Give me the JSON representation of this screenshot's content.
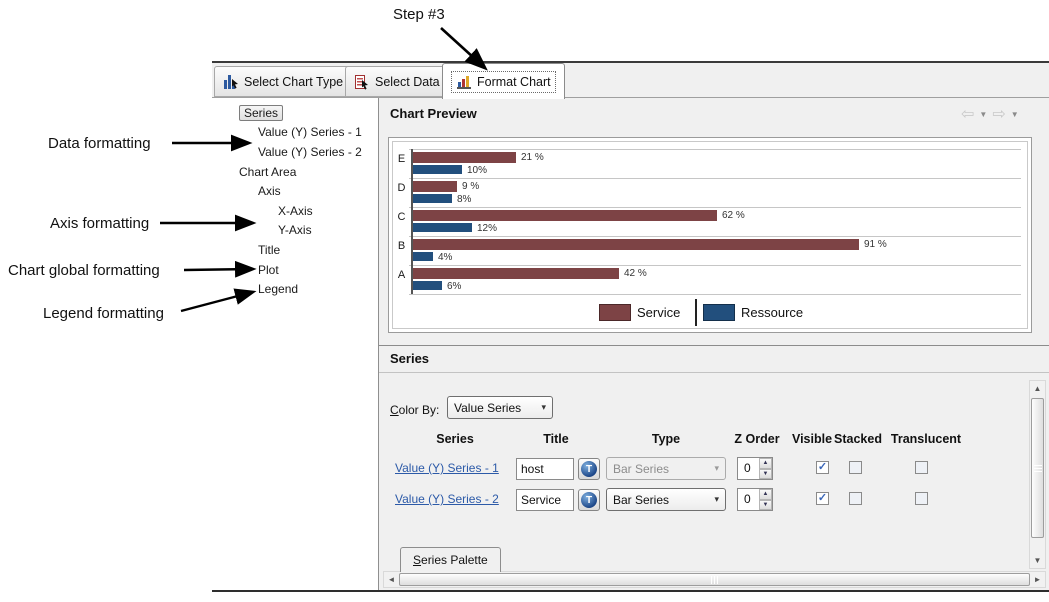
{
  "annotations": {
    "step": {
      "label": "Step #3"
    },
    "callouts": [
      {
        "label": "Data formatting"
      },
      {
        "label": "Axis formatting"
      },
      {
        "label": "Chart global formatting"
      },
      {
        "label": "Legend formatting"
      }
    ]
  },
  "tabs": [
    {
      "label": "Select Chart Type",
      "selected": false
    },
    {
      "label": "Select Data",
      "selected": false
    },
    {
      "label": "Format Chart",
      "selected": true
    }
  ],
  "tree": {
    "items": [
      {
        "label": "Series",
        "level": 1,
        "selected": true
      },
      {
        "label": "Value (Y) Series - 1",
        "level": 2,
        "selected": false
      },
      {
        "label": "Value (Y) Series - 2",
        "level": 2,
        "selected": false
      },
      {
        "label": "Chart Area",
        "level": 1,
        "selected": false
      },
      {
        "label": "Axis",
        "level": 2,
        "selected": false
      },
      {
        "label": "X-Axis",
        "level": 3,
        "selected": false
      },
      {
        "label": "Y-Axis",
        "level": 3,
        "selected": false
      },
      {
        "label": "Title",
        "level": 2,
        "selected": false
      },
      {
        "label": "Plot",
        "level": 2,
        "selected": false
      },
      {
        "label": "Legend",
        "level": 2,
        "selected": false
      }
    ]
  },
  "preview": {
    "title": "Chart Preview"
  },
  "chart_data": {
    "type": "bar",
    "orientation": "horizontal",
    "categories": [
      "E",
      "D",
      "C",
      "B",
      "A"
    ],
    "series": [
      {
        "name": "Service",
        "color": "#7D4345",
        "values": [
          21,
          9,
          62,
          91,
          42
        ],
        "data_labels": [
          "21 %",
          "9 %",
          "62 %",
          "91 %",
          "42 %"
        ]
      },
      {
        "name": "Ressource",
        "color": "#224F7D",
        "values": [
          10,
          8,
          12,
          4,
          6
        ],
        "data_labels": [
          "10%",
          "8%",
          "12%",
          "4%",
          "6%"
        ]
      }
    ],
    "value_unit": "%",
    "legend_position": "bottom",
    "gridlines": true
  },
  "series_panel": {
    "title": "Series",
    "color_by_label": "Color By:",
    "color_by_value": "Value Series",
    "table": {
      "headers": [
        "Series",
        "Title",
        "Type",
        "Z Order",
        "Visible",
        "Stacked",
        "Translucent"
      ],
      "rows": [
        {
          "series_link": "Value (Y) Series - 1",
          "title": "host",
          "type": "Bar Series",
          "type_enabled": false,
          "z_order": "0",
          "visible": true,
          "stacked": false,
          "translucent": false
        },
        {
          "series_link": "Value (Y) Series - 2",
          "title": "Service",
          "type": "Bar Series",
          "type_enabled": true,
          "z_order": "0",
          "visible": true,
          "stacked": false,
          "translucent": false
        }
      ]
    },
    "palette_tab_label": "Series Palette"
  },
  "icons": {
    "globe_text_button": "T",
    "back": "⇦",
    "forward": "⇨",
    "dropdown_caret": "▼",
    "scroll_up": "▲",
    "scroll_down": "▼",
    "scroll_left": "◄",
    "scroll_right": "►",
    "combo_arrow": "▾",
    "spinner_up": "▲",
    "spinner_down": "▼",
    "check": "✓"
  },
  "colors": {
    "service": "#7D4345",
    "ressource": "#224F7D",
    "link": "#2C5AA8"
  }
}
